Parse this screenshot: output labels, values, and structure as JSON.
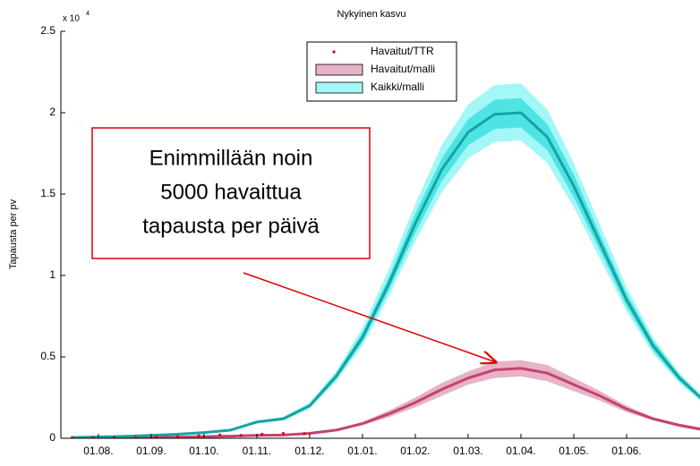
{
  "chart_data": {
    "type": "line",
    "title": "Nykyinen kasvu",
    "y_label": "Tapausta per pv",
    "y_multiplier": {
      "base": "x 10",
      "exponent": "4"
    },
    "xlim": [
      -0.71,
      11.39
    ],
    "xticks": [
      {
        "value": 0,
        "label": "01.08."
      },
      {
        "value": 1,
        "label": "01.09."
      },
      {
        "value": 2,
        "label": "01.10."
      },
      {
        "value": 3,
        "label": "01.11."
      },
      {
        "value": 4,
        "label": "01.12."
      },
      {
        "value": 5,
        "label": "01.01."
      },
      {
        "value": 6,
        "label": "01.02."
      },
      {
        "value": 7,
        "label": "01.03."
      },
      {
        "value": 8,
        "label": "01.04."
      },
      {
        "value": 9,
        "label": "01.05."
      },
      {
        "value": 10,
        "label": "01.06."
      }
    ],
    "ylim": [
      0,
      2.5
    ],
    "yticks": [
      0,
      0.5,
      1,
      1.5,
      2,
      2.5
    ],
    "legend": "top",
    "series": [
      {
        "name": "Havaitut/TTR",
        "kind": "points",
        "color": "#dd0000",
        "x": [
          -0.5,
          -0.1,
          0.3,
          0.7,
          1.1,
          1.5,
          1.9,
          2.3,
          2.7,
          3.1,
          3.5,
          3.9
        ],
        "values": [
          0.002,
          0.003,
          0.004,
          0.005,
          0.008,
          0.01,
          0.015,
          0.02,
          0.018,
          0.025,
          0.03,
          0.028
        ]
      },
      {
        "name": "Havaitut/malli",
        "kind": "band",
        "color": "#c4436f",
        "x": [
          -0.5,
          0,
          0.5,
          1,
          1.5,
          2,
          2.5,
          3,
          3.5,
          4,
          4.5,
          5,
          5.5,
          6,
          6.5,
          7,
          7.5,
          8,
          8.5,
          9,
          9.5,
          10,
          10.5,
          11,
          11.5
        ],
        "values": [
          0,
          0.002,
          0.003,
          0.005,
          0.007,
          0.01,
          0.013,
          0.018,
          0.02,
          0.03,
          0.05,
          0.09,
          0.15,
          0.22,
          0.3,
          0.37,
          0.42,
          0.43,
          0.4,
          0.33,
          0.26,
          0.18,
          0.12,
          0.08,
          0.05
        ],
        "bands": [
          {
            "color": "#e6b3c8",
            "high": [
              0,
              0.002,
              0.003,
              0.006,
              0.008,
              0.011,
              0.015,
              0.02,
              0.023,
              0.034,
              0.056,
              0.1,
              0.17,
              0.25,
              0.34,
              0.41,
              0.47,
              0.48,
              0.45,
              0.37,
              0.29,
              0.2,
              0.13,
              0.09,
              0.06
            ],
            "low": [
              0,
              0.002,
              0.003,
              0.004,
              0.006,
              0.009,
              0.011,
              0.016,
              0.017,
              0.026,
              0.044,
              0.08,
              0.13,
              0.19,
              0.26,
              0.33,
              0.37,
              0.38,
              0.35,
              0.29,
              0.23,
              0.16,
              0.11,
              0.07,
              0.04
            ]
          }
        ]
      },
      {
        "name": "Kaikki/malli",
        "kind": "band",
        "color": "#16a3a3",
        "x": [
          -0.5,
          0,
          0.5,
          1,
          1.5,
          2,
          2.5,
          3,
          3.5,
          4,
          4.5,
          5,
          5.5,
          6,
          6.5,
          7,
          7.5,
          8,
          8.5,
          9,
          9.5,
          10,
          10.5,
          11,
          11.5
        ],
        "values": [
          0.005,
          0.008,
          0.012,
          0.018,
          0.025,
          0.035,
          0.05,
          0.1,
          0.12,
          0.2,
          0.38,
          0.62,
          0.95,
          1.32,
          1.65,
          1.88,
          1.99,
          2.0,
          1.85,
          1.55,
          1.2,
          0.85,
          0.57,
          0.37,
          0.22
        ],
        "bands": [
          {
            "color": "#a3f7f7",
            "high": [
              0.005,
              0.009,
              0.013,
              0.02,
              0.027,
              0.038,
              0.055,
              0.11,
              0.13,
              0.22,
              0.41,
              0.68,
              1.04,
              1.44,
              1.8,
              2.05,
              2.17,
              2.18,
              2.02,
              1.69,
              1.31,
              0.93,
              0.62,
              0.4,
              0.24
            ],
            "low": [
              0.005,
              0.007,
              0.011,
              0.016,
              0.023,
              0.032,
              0.046,
              0.09,
              0.11,
              0.18,
              0.35,
              0.57,
              0.87,
              1.21,
              1.51,
              1.72,
              1.82,
              1.83,
              1.69,
              1.42,
              1.1,
              0.78,
              0.52,
              0.34,
              0.2
            ]
          },
          {
            "color": "#4fe4e4",
            "high": [
              0.005,
              0.008,
              0.013,
              0.019,
              0.026,
              0.037,
              0.052,
              0.1,
              0.13,
              0.21,
              0.4,
              0.65,
              0.99,
              1.38,
              1.72,
              1.96,
              2.08,
              2.09,
              1.93,
              1.62,
              1.25,
              0.89,
              0.6,
              0.39,
              0.23
            ],
            "low": [
              0.005,
              0.008,
              0.011,
              0.017,
              0.024,
              0.033,
              0.048,
              0.1,
              0.11,
              0.19,
              0.36,
              0.59,
              0.91,
              1.26,
              1.58,
              1.8,
              1.9,
              1.91,
              1.77,
              1.48,
              1.15,
              0.81,
              0.54,
              0.35,
              0.21
            ]
          }
        ]
      }
    ],
    "annotation": [
      "Enimmillään noin",
      "5000 havaittua",
      "tapausta per päivä"
    ]
  }
}
